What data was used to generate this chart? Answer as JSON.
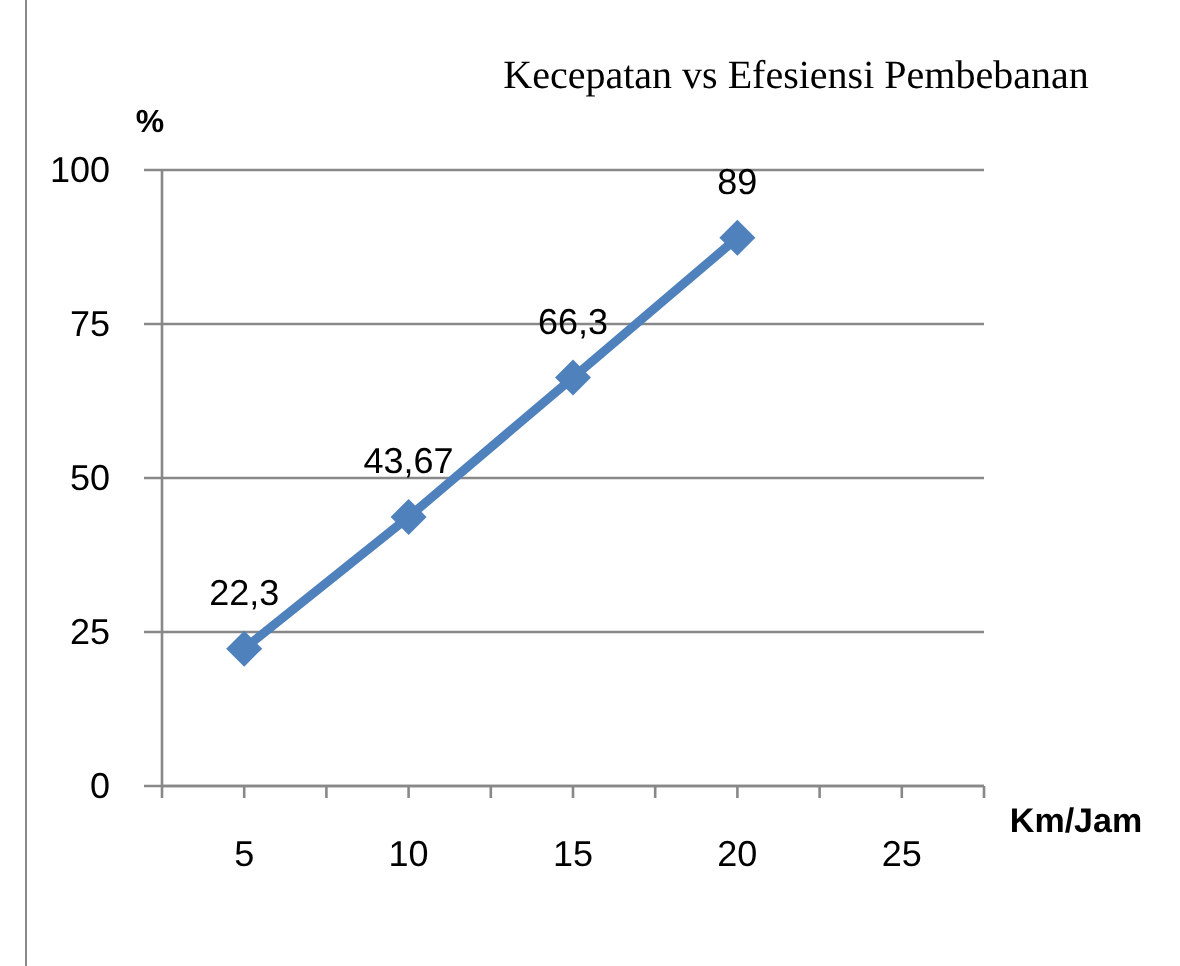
{
  "chart_data": {
    "type": "line",
    "title": "Kecepatan vs Efesiensi Pembebanan",
    "xlabel": "Km/Jam",
    "ylabel": "%",
    "x": [
      5,
      10,
      15,
      20
    ],
    "series": [
      {
        "color": "#4f81bd",
        "values": [
          22.3,
          43.67,
          66.3,
          89
        ],
        "value_labels": [
          "22,3",
          "43,67",
          "66,3",
          "89"
        ]
      }
    ],
    "xlim": [
      2.5,
      27.5
    ],
    "xticks": [
      {
        "value": 2.5,
        "label": null
      },
      5,
      {
        "value": 7.5,
        "label": null
      },
      10,
      {
        "value": 12.5,
        "label": null
      },
      15,
      {
        "value": 17.5,
        "label": null
      },
      20,
      {
        "value": 22.5,
        "label": null
      },
      25,
      {
        "value": 27.5,
        "label": null
      }
    ],
    "ylim": [
      0,
      100
    ],
    "yticks": [
      0,
      25,
      50,
      75,
      100
    ],
    "grid": "y",
    "marker": "diamond"
  }
}
